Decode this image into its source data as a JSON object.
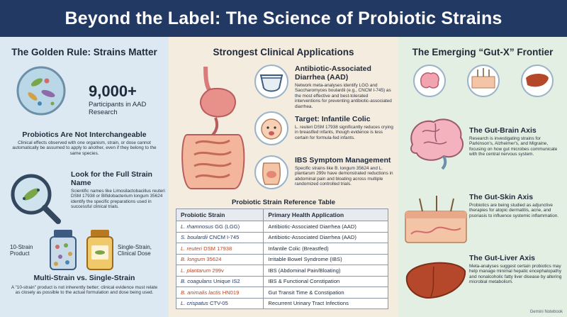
{
  "title": "Beyond the Label: The Science of Probiotic Strains",
  "left": {
    "heading": "The Golden Rule: Strains Matter",
    "stat_number": "9,000+",
    "stat_label": "Participants in AAD Research",
    "not_interchangeable_title": "Probiotics Are Not Interchangeable",
    "not_interchangeable_text": "Clinical effects observed with one organism, strain, or dose cannot automatically be assumed to apply to another, even if they belong to the same species.",
    "full_name_title": "Look for the Full Strain Name",
    "full_name_text": "Scientific names like Limosilactobacillus reuteri DSM 17938 or Bifidobacterium longum 35624 identify the specific preparations used in successful clinical trials.",
    "ten_strain_label": "10-Strain Product",
    "single_strain_label": "Single-Strain, Clinical Dose",
    "multi_title": "Multi-Strain vs. Single-Strain",
    "multi_text": "A \"10-strain\" product is not inherently better; clinical evidence must relate as closely as possible to the actual formulation and dose being used."
  },
  "mid": {
    "heading": "Strongest Clinical Applications",
    "apps": [
      {
        "title": "Antibiotic-Associated Diarrhea (AAD)",
        "text": "Network meta-analyses identify LGG and Saccharomyces boulardii (e.g., CNCM I-745) as the most effective and best-tolerated interventions for preventing antibiotic-associated diarrhea."
      },
      {
        "title": "Target: Infantile Colic",
        "text": "L. reuteri DSM 17938 significantly reduces crying in breastfed infants, though evidence is less certain for formula-fed infants."
      },
      {
        "title": "IBS Symptom Management",
        "text": "Specific strains like B. longum 35624 and L. plantarum 299v have demonstrated reductions in abdominal pain and bloating across multiple randomized controlled trials."
      }
    ],
    "table_title": "Probiotic Strain Reference Table",
    "table_headers": [
      "Probiotic Strain",
      "Primary Health Application"
    ],
    "rows": [
      {
        "species": "L. rhamnosus",
        "strain": "GG (LGG)",
        "app": "Antibiotic-Associated Diarrhea (AAD)",
        "color": "#223a63"
      },
      {
        "species": "S. boulardii",
        "strain": "CNCM I-745",
        "app": "Antibiotic-Associated Diarrhea (AAD)",
        "color": "#223a63"
      },
      {
        "species": "L. reuteri",
        "strain": "DSM 17938",
        "app": "Infantile Colic (Breastfed)",
        "color": "#b5472a"
      },
      {
        "species": "B. longum",
        "strain": "35624",
        "app": "Irritable Bowel Syndrome (IBS)",
        "color": "#b5472a"
      },
      {
        "species": "L. plantarum",
        "strain": "299v",
        "app": "IBS (Abdominal Pain/Bloating)",
        "color": "#b5472a"
      },
      {
        "species": "B. coagulans",
        "strain": "Unique IS2",
        "app": "IBS & Functional Constipation",
        "color": "#223a63"
      },
      {
        "species": "B. animalis lactis",
        "strain": "HN019",
        "app": "Gut Transit Time & Constipation",
        "color": "#b5472a"
      },
      {
        "species": "L. crispatus",
        "strain": "CTV-05",
        "app": "Recurrent Urinary Tract Infections",
        "color": "#223a63"
      }
    ]
  },
  "right": {
    "heading": "The Emerging “Gut-X” Frontier",
    "axes": [
      {
        "title": "The Gut-Brain Axis",
        "text": "Research is investigating strains for Parkinson's, Alzheimer's, and Migraine, focusing on how gut microbes communicate with the central nervous system."
      },
      {
        "title": "The Gut-Skin Axis",
        "text": "Probiotics are being studied as adjunctive therapies for atopic dermatitis, acne, and psoriasis to influence systemic inflammation."
      },
      {
        "title": "The Gut-Liver Axis",
        "text": "Meta-analyses suggest certain probiotics may help manage minimal hepatic encephalopathy and nonalcoholic fatty liver disease by altering microbial metabolism."
      }
    ]
  },
  "watermark": "Gemini Notebook"
}
